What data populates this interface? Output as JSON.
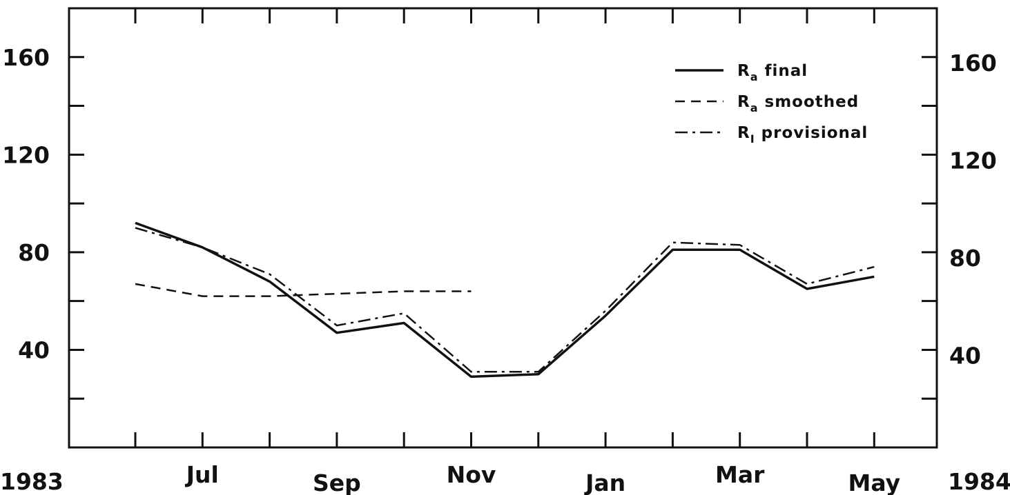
{
  "chart_data": {
    "type": "line",
    "title": "",
    "xlabel": "",
    "ylabel": "",
    "x_start_label": "1983",
    "x_end_label": "1984",
    "x_tick_labels": [
      "Jul",
      "Sep",
      "Nov",
      "Jan",
      "Mar",
      "May"
    ],
    "x_months": [
      "Jun 1983",
      "Jul 1983",
      "Aug 1983",
      "Sep 1983",
      "Oct 1983",
      "Nov 1983",
      "Dec 1983",
      "Jan 1984",
      "Feb 1984",
      "Mar 1984",
      "Apr 1984",
      "May 1984"
    ],
    "ylim": [
      0,
      180
    ],
    "y_tick_labels": [
      "40",
      "80",
      "120",
      "160"
    ],
    "grid": false,
    "legend_position": "top-right",
    "series": [
      {
        "name": "R_a final",
        "name_main": "R",
        "name_sub": "a",
        "name_rest": " final",
        "style": "solid",
        "values": [
          92,
          82,
          68,
          47,
          51,
          29,
          30,
          54,
          81,
          81,
          65,
          70
        ]
      },
      {
        "name": "R_a smoothed",
        "name_main": "R",
        "name_sub": "a",
        "name_rest": " smoothed",
        "style": "dashed",
        "values": [
          67,
          62,
          62,
          63,
          64,
          64,
          null,
          null,
          null,
          null,
          null,
          null
        ]
      },
      {
        "name": "R_I provisional",
        "name_main": "R",
        "name_sub": "I",
        "name_rest": " provisional",
        "style": "dashdot",
        "values": [
          90,
          82,
          71,
          50,
          55,
          31,
          31,
          56,
          84,
          83,
          67,
          74
        ]
      }
    ]
  }
}
